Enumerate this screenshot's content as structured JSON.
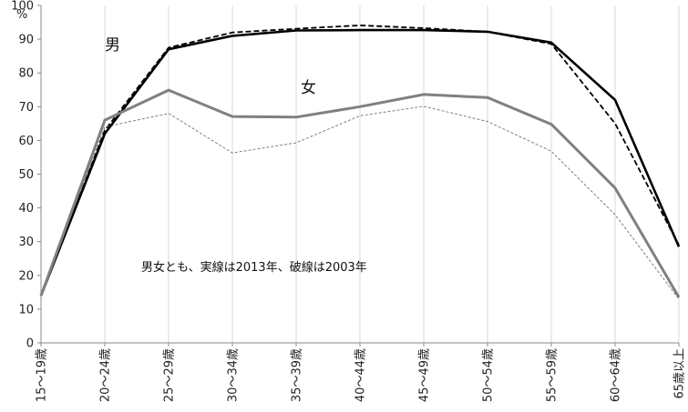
{
  "chart_data": {
    "type": "line",
    "categories": [
      "15～19歳",
      "20～24歳",
      "25～29歳",
      "30～34歳",
      "35～39歳",
      "40～44歳",
      "45～49歳",
      "50～54歳",
      "55～59歳",
      "60～64歳",
      "65歳以上"
    ],
    "yunit": "%",
    "ylim": [
      0,
      100
    ],
    "yticks": [
      0,
      10,
      20,
      30,
      40,
      50,
      60,
      70,
      80,
      90,
      100
    ],
    "grid": "vertical",
    "legend": "none",
    "labels": {
      "male": "男",
      "female": "女"
    },
    "note": "男女とも、実線は2013年、破線は2003年",
    "series": [
      {
        "group": "male",
        "year": "2013",
        "style": "solid",
        "color": "#000000",
        "values": [
          14.0,
          62.0,
          87.0,
          91.0,
          92.6,
          92.7,
          92.7,
          92.2,
          89.0,
          72.0,
          28.5
        ]
      },
      {
        "group": "male",
        "year": "2003",
        "style": "dashed",
        "color": "#000000",
        "values": [
          14.0,
          63.0,
          87.5,
          92.0,
          93.1,
          94.1,
          93.3,
          92.2,
          88.6,
          65.0,
          29.0
        ]
      },
      {
        "group": "female",
        "year": "2013",
        "style": "solid",
        "color": "#808080",
        "values": [
          14.0,
          66.0,
          74.9,
          67.1,
          66.9,
          70.0,
          73.6,
          72.7,
          64.8,
          45.9,
          13.5
        ]
      },
      {
        "group": "female",
        "year": "2003",
        "style": "dashed",
        "color": "#808080",
        "values": [
          14.0,
          64.0,
          68.0,
          56.3,
          59.3,
          67.3,
          70.1,
          65.6,
          56.8,
          38.0,
          13.0
        ]
      }
    ]
  }
}
